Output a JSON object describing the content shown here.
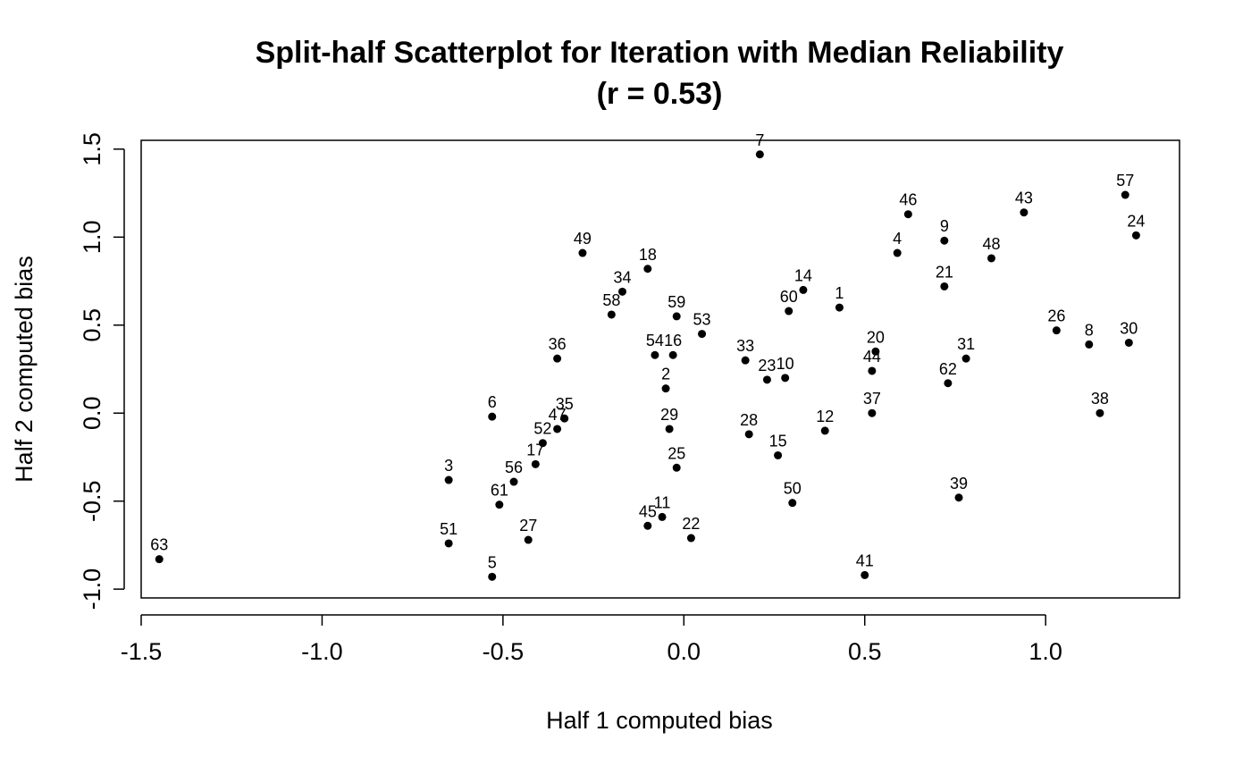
{
  "chart_data": {
    "type": "scatter",
    "title": "Split-half Scatterplot for Iteration with Median Reliability",
    "subtitle": "(r = 0.53)",
    "xlabel": "Half 1 computed bias",
    "ylabel": "Half 2 computed bias",
    "xlim": [
      -1.5,
      1.37
    ],
    "ylim": [
      -1.05,
      1.55
    ],
    "x_ticks": [
      -1.5,
      -1.0,
      -0.5,
      0.0,
      0.5,
      1.0
    ],
    "x_tick_labels": [
      "-1.5",
      "-1.0",
      "-0.5",
      "0.0",
      "0.5",
      "1.0"
    ],
    "y_ticks": [
      -1.0,
      -0.5,
      0.0,
      0.5,
      1.0,
      1.5
    ],
    "y_tick_labels": [
      "-1.0",
      "-0.5",
      "0.0",
      "0.5",
      "1.0",
      "1.5"
    ],
    "grid": false,
    "legend": "none",
    "point_color": "#000000",
    "points": [
      {
        "label": "1",
        "x": 0.43,
        "y": 0.6
      },
      {
        "label": "2",
        "x": -0.05,
        "y": 0.14
      },
      {
        "label": "3",
        "x": -0.65,
        "y": -0.38
      },
      {
        "label": "4",
        "x": 0.59,
        "y": 0.91
      },
      {
        "label": "5",
        "x": -0.53,
        "y": -0.93
      },
      {
        "label": "6",
        "x": -0.53,
        "y": -0.02
      },
      {
        "label": "7",
        "x": 0.21,
        "y": 1.47
      },
      {
        "label": "8",
        "x": 1.12,
        "y": 0.39
      },
      {
        "label": "9",
        "x": 0.72,
        "y": 0.98
      },
      {
        "label": "10",
        "x": 0.28,
        "y": 0.2
      },
      {
        "label": "11",
        "x": -0.06,
        "y": -0.59
      },
      {
        "label": "12",
        "x": 0.39,
        "y": -0.1
      },
      {
        "label": "14",
        "x": 0.33,
        "y": 0.7
      },
      {
        "label": "15",
        "x": 0.26,
        "y": -0.24
      },
      {
        "label": "16",
        "x": -0.03,
        "y": 0.33
      },
      {
        "label": "17",
        "x": -0.41,
        "y": -0.29
      },
      {
        "label": "18",
        "x": -0.1,
        "y": 0.82
      },
      {
        "label": "20",
        "x": 0.53,
        "y": 0.35
      },
      {
        "label": "21",
        "x": 0.72,
        "y": 0.72
      },
      {
        "label": "22",
        "x": 0.02,
        "y": -0.71
      },
      {
        "label": "23",
        "x": 0.23,
        "y": 0.19
      },
      {
        "label": "24",
        "x": 1.25,
        "y": 1.01
      },
      {
        "label": "25",
        "x": -0.02,
        "y": -0.31
      },
      {
        "label": "26",
        "x": 1.03,
        "y": 0.47
      },
      {
        "label": "27",
        "x": -0.43,
        "y": -0.72
      },
      {
        "label": "28",
        "x": 0.18,
        "y": -0.12
      },
      {
        "label": "29",
        "x": -0.04,
        "y": -0.09
      },
      {
        "label": "30",
        "x": 1.23,
        "y": 0.4
      },
      {
        "label": "31",
        "x": 0.78,
        "y": 0.31
      },
      {
        "label": "33",
        "x": 0.17,
        "y": 0.3
      },
      {
        "label": "34",
        "x": -0.17,
        "y": 0.69
      },
      {
        "label": "35",
        "x": -0.33,
        "y": -0.03
      },
      {
        "label": "36",
        "x": -0.35,
        "y": 0.31
      },
      {
        "label": "37",
        "x": 0.52,
        "y": 0.0
      },
      {
        "label": "38",
        "x": 1.15,
        "y": 0.0
      },
      {
        "label": "39",
        "x": 0.76,
        "y": -0.48
      },
      {
        "label": "41",
        "x": 0.5,
        "y": -0.92
      },
      {
        "label": "43",
        "x": 0.94,
        "y": 1.14
      },
      {
        "label": "44",
        "x": 0.52,
        "y": 0.24
      },
      {
        "label": "45",
        "x": -0.1,
        "y": -0.64
      },
      {
        "label": "46",
        "x": 0.62,
        "y": 1.13
      },
      {
        "label": "47",
        "x": -0.35,
        "y": -0.09
      },
      {
        "label": "48",
        "x": 0.85,
        "y": 0.88
      },
      {
        "label": "49",
        "x": -0.28,
        "y": 0.91
      },
      {
        "label": "50",
        "x": 0.3,
        "y": -0.51
      },
      {
        "label": "51",
        "x": -0.65,
        "y": -0.74
      },
      {
        "label": "52",
        "x": -0.39,
        "y": -0.17
      },
      {
        "label": "53",
        "x": 0.05,
        "y": 0.45
      },
      {
        "label": "54",
        "x": -0.08,
        "y": 0.33
      },
      {
        "label": "56",
        "x": -0.47,
        "y": -0.39
      },
      {
        "label": "57",
        "x": 1.22,
        "y": 1.24
      },
      {
        "label": "58",
        "x": -0.2,
        "y": 0.56
      },
      {
        "label": "59",
        "x": -0.02,
        "y": 0.55
      },
      {
        "label": "60",
        "x": 0.29,
        "y": 0.58
      },
      {
        "label": "61",
        "x": -0.51,
        "y": -0.52
      },
      {
        "label": "62",
        "x": 0.73,
        "y": 0.17
      },
      {
        "label": "63",
        "x": -1.45,
        "y": -0.83
      }
    ]
  }
}
